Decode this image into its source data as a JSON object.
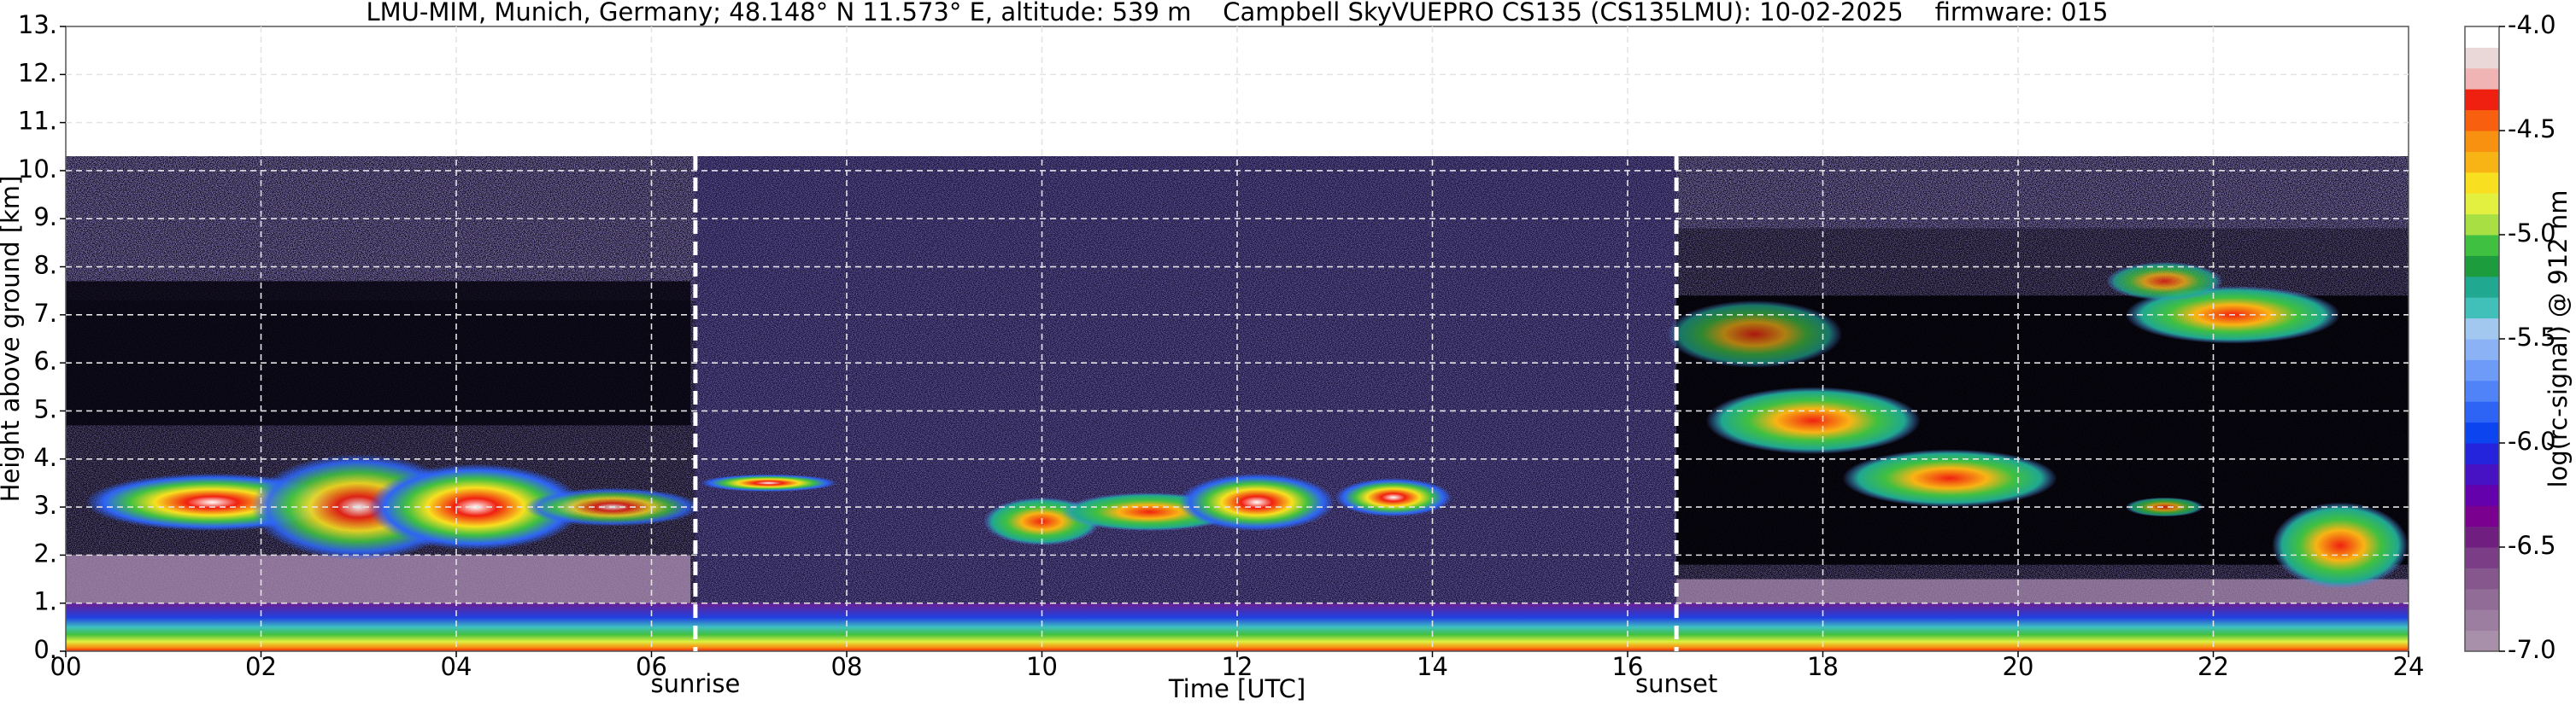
{
  "chart_data": {
    "type": "heatmap",
    "title": "LMU-MIM, Munich, Germany; 48.148° N 11.573° E, altitude: 539 m    Campbell SkyVUEPRO CS135 (CS135LMU): 10-02-2025    firmware: 015",
    "xlabel": "Time [UTC]",
    "ylabel": "Height above ground [km]",
    "xlim": [
      0,
      24
    ],
    "xticks": [
      {
        "value": 0,
        "label": "00"
      },
      {
        "value": 2,
        "label": "02"
      },
      {
        "value": 4,
        "label": "04"
      },
      {
        "value": 6,
        "label": "06"
      },
      {
        "value": 8,
        "label": "08"
      },
      10,
      12,
      14,
      16,
      18,
      20,
      22,
      24
    ],
    "ylim": [
      0,
      13
    ],
    "yticks": [
      {
        "value": 0,
        "label": "0."
      },
      {
        "value": 1,
        "label": "1."
      },
      {
        "value": 2,
        "label": "2."
      },
      {
        "value": 3,
        "label": "3."
      },
      {
        "value": 4,
        "label": "4."
      },
      {
        "value": 5,
        "label": "5."
      },
      {
        "value": 6,
        "label": "6."
      },
      {
        "value": 7,
        "label": "7."
      },
      {
        "value": 8,
        "label": "8."
      },
      {
        "value": 9,
        "label": "9."
      },
      {
        "value": 10,
        "label": "10."
      },
      {
        "value": 11,
        "label": "11."
      },
      {
        "value": 12,
        "label": "12."
      },
      {
        "value": 13,
        "label": "13."
      }
    ],
    "grid": true,
    "annotations": [
      {
        "text": "sunrise",
        "x": 6.45
      },
      {
        "text": "sunset",
        "x": 16.5
      }
    ],
    "colorbar": {
      "label": "log(rc-signal) @ 912 nm",
      "clim": [
        -7,
        -4
      ],
      "ticks": [
        {
          "value": -4,
          "label": "-4.0"
        },
        -4.5,
        {
          "value": -5,
          "label": "-5.0"
        },
        -5.5,
        {
          "value": -6,
          "label": "-6.0"
        },
        -6.5,
        {
          "value": -7,
          "label": "-7.0"
        }
      ],
      "colors": [
        "#a890aa",
        "#9c7ea0",
        "#906c97",
        "#86578d",
        "#7c3d87",
        "#701f80",
        "#7a0090",
        "#6400ac",
        "#4612c4",
        "#2424dc",
        "#0c44f0",
        "#2e64f6",
        "#5082f8",
        "#6e9af8",
        "#8cb2f6",
        "#a2c8f0",
        "#40c0b8",
        "#20a890",
        "#1c9c3c",
        "#40c040",
        "#a8e044",
        "#e4f040",
        "#f8e020",
        "#f8b414",
        "#f89010",
        "#f86010",
        "#f02010",
        "#f0b4b4",
        "#ead8d8",
        "#ffffff"
      ]
    }
  }
}
